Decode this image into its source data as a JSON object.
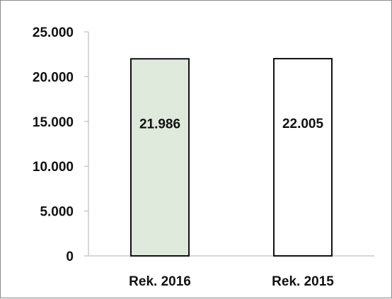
{
  "chart_data": {
    "type": "bar",
    "categories": [
      "Rek. 2016",
      "Rek. 2015"
    ],
    "values": [
      21986,
      22005
    ],
    "value_labels": [
      "21.986",
      "22.005"
    ],
    "bar_colors": [
      "#dfe9dc",
      "#ffffff"
    ],
    "bar_outline": "#111111",
    "ylim": [
      0,
      25000
    ],
    "yticks": [
      0,
      5000,
      10000,
      15000,
      20000,
      25000
    ],
    "ytick_labels": [
      "0",
      "5.000",
      "10.000",
      "15.000",
      "20.000",
      "25.000"
    ],
    "grid": false,
    "legend": "none"
  }
}
